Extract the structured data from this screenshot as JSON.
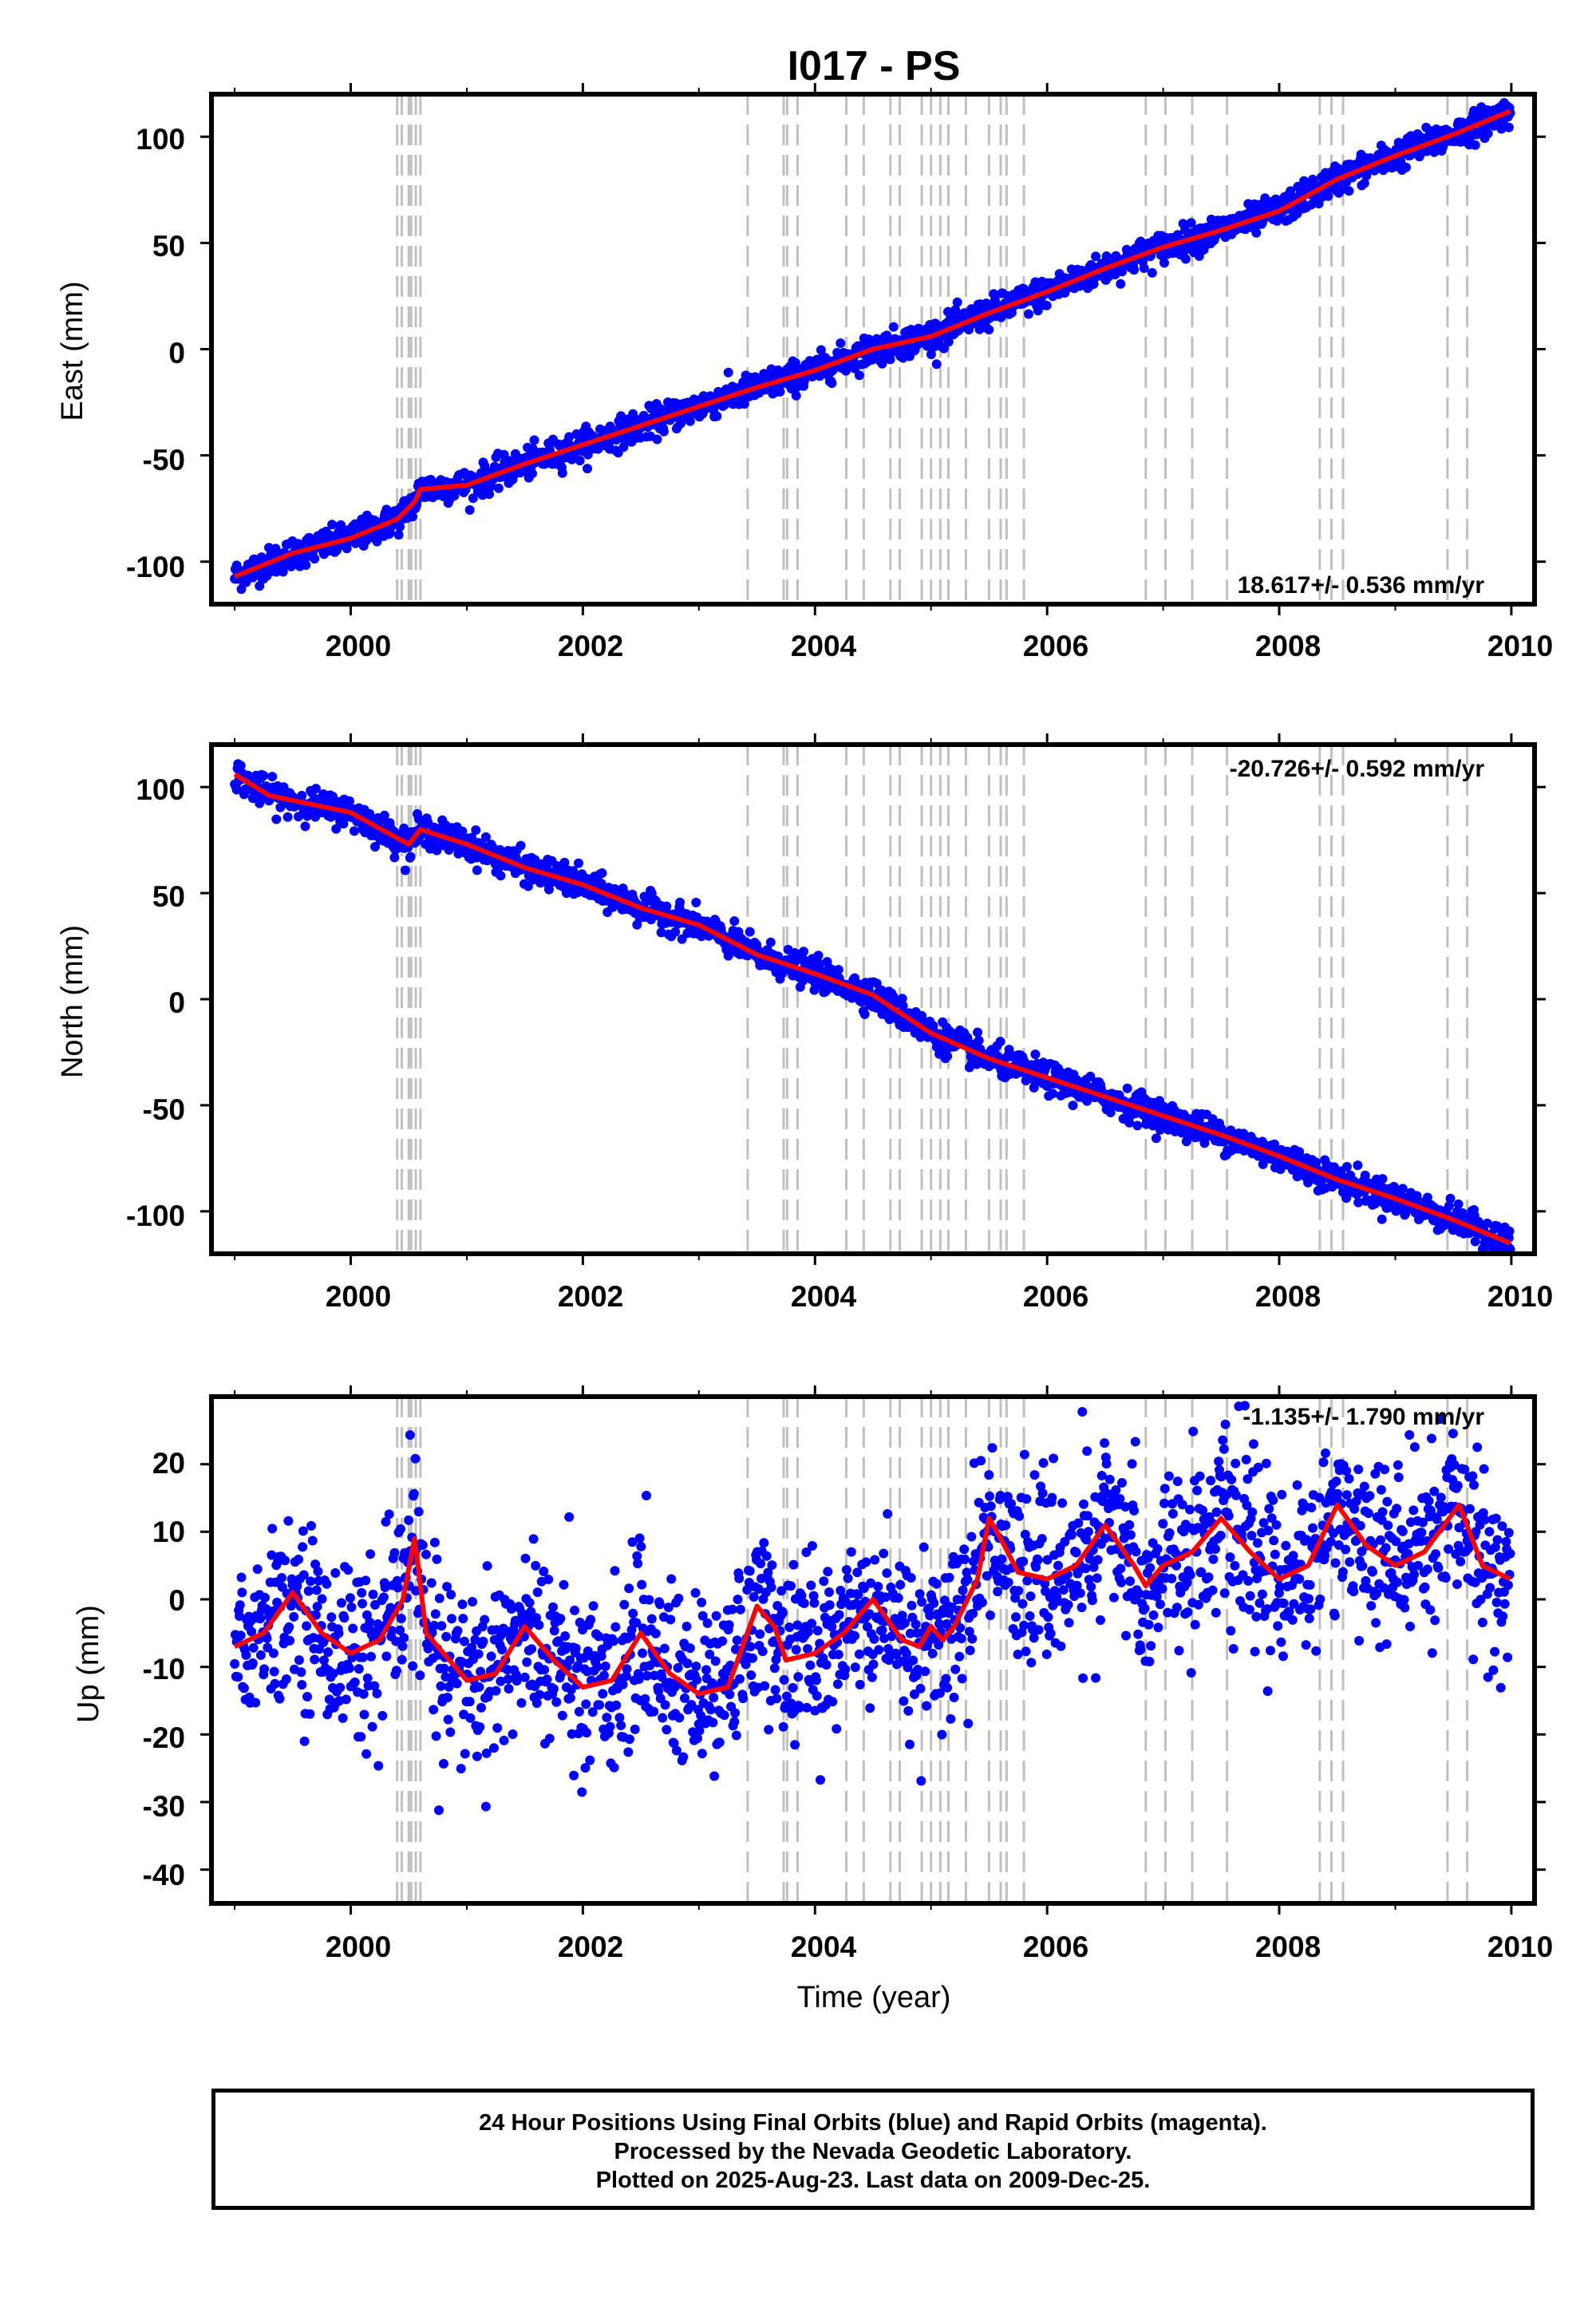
{
  "title": "I017 - PS",
  "footer": {
    "line1": "24 Hour Positions Using Final Orbits (blue) and Rapid Orbits (magenta).",
    "line2": "Processed by the Nevada Geodetic Laboratory.",
    "line3": "Plotted on 2025-Aug-23. Last data on 2009-Dec-25."
  },
  "colors": {
    "points": "#0000ff",
    "model": "#ff0000",
    "steps": "#c0c0c0",
    "frame": "#000000"
  },
  "chart_data": [
    {
      "type": "scatter",
      "component": "East",
      "ylabel": "East (mm)",
      "xlabel": "",
      "xlim": [
        1998.8,
        2010.2
      ],
      "ylim": [
        -120,
        120
      ],
      "xticks": [
        2000,
        2002,
        2004,
        2006,
        2008,
        2010
      ],
      "yticks": [
        -100,
        -50,
        0,
        50,
        100
      ],
      "rate_label": "18.617+/- 0.536 mm/yr",
      "rate_position": "bottom-right",
      "model_x": [
        1999.0,
        1999.5,
        2000.0,
        2000.4,
        2000.55,
        2000.6,
        2001.0,
        2001.5,
        2002.0,
        2002.5,
        2003.0,
        2003.5,
        2004.0,
        2004.5,
        2005.0,
        2005.5,
        2006.0,
        2006.5,
        2007.0,
        2007.5,
        2008.0,
        2008.5,
        2009.0,
        2009.5,
        2009.99
      ],
      "model_y": [
        -107,
        -96,
        -89,
        -80,
        -72,
        -66,
        -64,
        -54,
        -45,
        -36,
        -27,
        -18,
        -10,
        0,
        6,
        17,
        27,
        38,
        48,
        56,
        65,
        80,
        91,
        101,
        112
      ],
      "scatter_sigma": 3.5
    },
    {
      "type": "scatter",
      "component": "North",
      "ylabel": "North (mm)",
      "xlabel": "",
      "xlim": [
        1998.8,
        2010.2
      ],
      "ylim": [
        -120,
        120
      ],
      "xticks": [
        2000,
        2002,
        2004,
        2006,
        2008,
        2010
      ],
      "yticks": [
        -100,
        -50,
        0,
        50,
        100
      ],
      "rate_label": "-20.726+/- 0.592 mm/yr",
      "rate_position": "top-right",
      "model_x": [
        1999.0,
        1999.3,
        2000.0,
        2000.4,
        2000.5,
        2000.6,
        2001.0,
        2001.5,
        2002.0,
        2002.5,
        2003.0,
        2003.5,
        2004.0,
        2004.5,
        2005.0,
        2005.5,
        2006.0,
        2006.5,
        2007.0,
        2007.5,
        2008.0,
        2008.5,
        2009.0,
        2009.5,
        2009.99
      ],
      "model_y": [
        106,
        96,
        88,
        76,
        73,
        80,
        73,
        62,
        54,
        43,
        35,
        21,
        12,
        2,
        -16,
        -28,
        -37,
        -46,
        -55,
        -64,
        -74,
        -85,
        -94,
        -104,
        -115
      ],
      "scatter_sigma": 3.5
    },
    {
      "type": "scatter",
      "component": "Up",
      "ylabel": "Up (mm)",
      "xlabel": "Time (year)",
      "xlim": [
        1998.8,
        2010.2
      ],
      "ylim": [
        -45,
        30
      ],
      "xticks": [
        2000,
        2002,
        2004,
        2006,
        2008,
        2010
      ],
      "yticks": [
        -40,
        -30,
        -20,
        -10,
        0,
        10,
        20
      ],
      "rate_label": "-1.135+/- 1.790 mm/yr",
      "rate_position": "top-right",
      "model_x": [
        1999.0,
        1999.25,
        1999.5,
        1999.75,
        2000.0,
        2000.25,
        2000.45,
        2000.55,
        2000.65,
        2001.0,
        2001.25,
        2001.5,
        2001.75,
        2002.0,
        2002.25,
        2002.5,
        2002.75,
        2003.0,
        2003.25,
        2003.5,
        2003.65,
        2003.75,
        2004.0,
        2004.25,
        2004.5,
        2004.75,
        2004.9,
        2005.0,
        2005.1,
        2005.2,
        2005.4,
        2005.5,
        2005.6,
        2005.75,
        2006.0,
        2006.25,
        2006.5,
        2006.75,
        2006.85,
        2007.0,
        2007.25,
        2007.5,
        2007.75,
        2008.0,
        2008.25,
        2008.5,
        2008.75,
        2009.0,
        2009.25,
        2009.55,
        2009.75,
        2009.99
      ],
      "model_y": [
        -7,
        -5,
        1,
        -5,
        -8,
        -6,
        0,
        9,
        -5,
        -12,
        -11,
        -4,
        -9,
        -13,
        -12,
        -5,
        -11,
        -14,
        -13,
        -1,
        -4,
        -9,
        -8,
        -5,
        0,
        -6,
        -7,
        -4,
        -6,
        -4,
        3,
        12,
        9,
        4,
        3,
        5,
        11,
        5,
        2,
        5,
        7,
        12,
        7,
        3,
        5,
        14,
        8,
        5,
        7,
        14,
        5,
        3
      ],
      "scatter_sigma": 6.5
    }
  ],
  "steps": [
    2000.4,
    2000.44,
    2000.5,
    2000.52,
    2000.56,
    2000.6,
    2003.42,
    2003.73,
    2003.76,
    2003.85,
    2004.27,
    2004.42,
    2004.65,
    2004.73,
    2004.92,
    2005.0,
    2005.08,
    2005.15,
    2005.3,
    2005.5,
    2005.6,
    2005.65,
    2005.8,
    2006.85,
    2007.02,
    2007.25,
    2007.55,
    2008.35,
    2008.45,
    2008.55,
    2009.45,
    2009.62
  ]
}
